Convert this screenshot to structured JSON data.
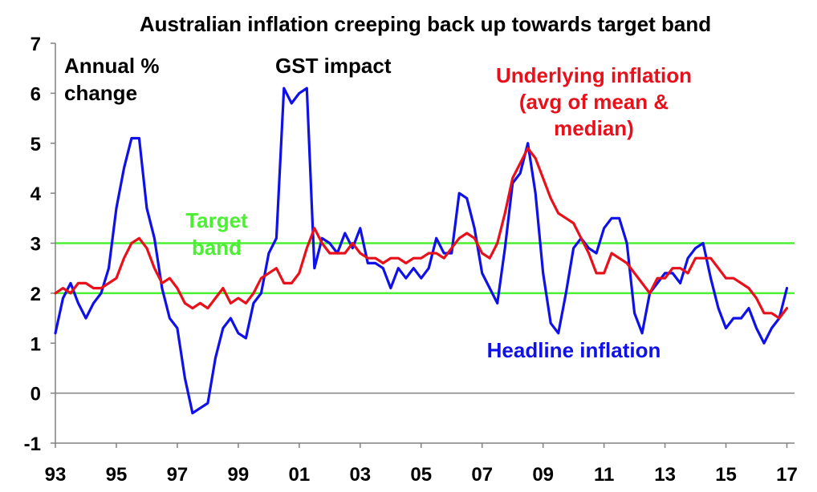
{
  "chart_data": {
    "type": "line",
    "title": "Australian inflation creeping back up towards target band",
    "ylabel_lines": [
      "Annual %",
      "change"
    ],
    "xlabel": "",
    "ylim": [
      -1,
      7
    ],
    "yticks": [
      -1,
      0,
      1,
      2,
      3,
      4,
      5,
      6,
      7
    ],
    "xlim": [
      1993,
      2017.25
    ],
    "xticks": [
      {
        "value": 1993,
        "label": "93"
      },
      {
        "value": 1995,
        "label": "95"
      },
      {
        "value": 1997,
        "label": "97"
      },
      {
        "value": 1999,
        "label": "99"
      },
      {
        "value": 2001,
        "label": "01"
      },
      {
        "value": 2003,
        "label": "03"
      },
      {
        "value": 2005,
        "label": "05"
      },
      {
        "value": 2007,
        "label": "07"
      },
      {
        "value": 2009,
        "label": "09"
      },
      {
        "value": 2011,
        "label": "11"
      },
      {
        "value": 2013,
        "label": "13"
      },
      {
        "value": 2015,
        "label": "15"
      },
      {
        "value": 2017,
        "label": "17"
      }
    ],
    "reference_lines": [
      {
        "y": 0,
        "color": "#808080"
      },
      {
        "y": 2,
        "color": "#4cf032"
      },
      {
        "y": 3,
        "color": "#4cf032"
      }
    ],
    "annotations": {
      "gst": "GST impact",
      "target_lines": [
        "Target",
        "band"
      ],
      "underlying_lines": [
        "Underlying inflation",
        "(avg of mean &",
        "median)"
      ],
      "headline": "Headline inflation"
    },
    "series": [
      {
        "name": "Headline inflation",
        "color": "#1010e8",
        "x": [
          1993.0,
          1993.25,
          1993.5,
          1993.75,
          1994.0,
          1994.25,
          1994.5,
          1994.75,
          1995.0,
          1995.25,
          1995.5,
          1995.75,
          1996.0,
          1996.25,
          1996.5,
          1996.75,
          1997.0,
          1997.25,
          1997.5,
          1997.75,
          1998.0,
          1998.25,
          1998.5,
          1998.75,
          1999.0,
          1999.25,
          1999.5,
          1999.75,
          2000.0,
          2000.25,
          2000.5,
          2000.75,
          2001.0,
          2001.25,
          2001.5,
          2001.75,
          2002.0,
          2002.25,
          2002.5,
          2002.75,
          2003.0,
          2003.25,
          2003.5,
          2003.75,
          2004.0,
          2004.25,
          2004.5,
          2004.75,
          2005.0,
          2005.25,
          2005.5,
          2005.75,
          2006.0,
          2006.25,
          2006.5,
          2006.75,
          2007.0,
          2007.25,
          2007.5,
          2007.75,
          2008.0,
          2008.25,
          2008.5,
          2008.75,
          2009.0,
          2009.25,
          2009.5,
          2009.75,
          2010.0,
          2010.25,
          2010.5,
          2010.75,
          2011.0,
          2011.25,
          2011.5,
          2011.75,
          2012.0,
          2012.25,
          2012.5,
          2012.75,
          2013.0,
          2013.25,
          2013.5,
          2013.75,
          2014.0,
          2014.25,
          2014.5,
          2014.75,
          2015.0,
          2015.25,
          2015.5,
          2015.75,
          2016.0,
          2016.25,
          2016.5,
          2016.75,
          2017.0
        ],
        "values": [
          1.2,
          1.9,
          2.2,
          1.8,
          1.5,
          1.8,
          2.0,
          2.5,
          3.7,
          4.5,
          5.1,
          5.1,
          3.7,
          3.1,
          2.1,
          1.5,
          1.3,
          0.3,
          -0.4,
          -0.3,
          -0.2,
          0.7,
          1.3,
          1.5,
          1.2,
          1.1,
          1.8,
          2.0,
          2.8,
          3.1,
          6.1,
          5.8,
          6.0,
          6.1,
          2.5,
          3.1,
          3.0,
          2.8,
          3.2,
          2.9,
          3.3,
          2.6,
          2.6,
          2.5,
          2.1,
          2.5,
          2.3,
          2.5,
          2.3,
          2.5,
          3.1,
          2.8,
          2.8,
          4.0,
          3.9,
          3.3,
          2.4,
          2.1,
          1.8,
          2.9,
          4.2,
          4.4,
          5.0,
          4.0,
          2.4,
          1.4,
          1.2,
          2.0,
          2.9,
          3.1,
          2.9,
          2.8,
          3.3,
          3.5,
          3.5,
          3.0,
          1.6,
          1.2,
          2.0,
          2.2,
          2.4,
          2.4,
          2.2,
          2.7,
          2.9,
          3.0,
          2.3,
          1.7,
          1.3,
          1.5,
          1.5,
          1.7,
          1.3,
          1.0,
          1.3,
          1.5,
          2.1
        ]
      },
      {
        "name": "Underlying inflation (avg of mean & median)",
        "color": "#e8101a",
        "x": [
          1993.0,
          1993.25,
          1993.5,
          1993.75,
          1994.0,
          1994.25,
          1994.5,
          1994.75,
          1995.0,
          1995.25,
          1995.5,
          1995.75,
          1996.0,
          1996.25,
          1996.5,
          1996.75,
          1997.0,
          1997.25,
          1997.5,
          1997.75,
          1998.0,
          1998.25,
          1998.5,
          1998.75,
          1999.0,
          1999.25,
          1999.5,
          1999.75,
          2000.0,
          2000.25,
          2000.5,
          2000.75,
          2001.0,
          2001.25,
          2001.5,
          2001.75,
          2002.0,
          2002.25,
          2002.5,
          2002.75,
          2003.0,
          2003.25,
          2003.5,
          2003.75,
          2004.0,
          2004.25,
          2004.5,
          2004.75,
          2005.0,
          2005.25,
          2005.5,
          2005.75,
          2006.0,
          2006.25,
          2006.5,
          2006.75,
          2007.0,
          2007.25,
          2007.5,
          2007.75,
          2008.0,
          2008.25,
          2008.5,
          2008.75,
          2009.0,
          2009.25,
          2009.5,
          2009.75,
          2010.0,
          2010.25,
          2010.5,
          2010.75,
          2011.0,
          2011.25,
          2011.5,
          2011.75,
          2012.0,
          2012.25,
          2012.5,
          2012.75,
          2013.0,
          2013.25,
          2013.5,
          2013.75,
          2014.0,
          2014.25,
          2014.5,
          2014.75,
          2015.0,
          2015.25,
          2015.5,
          2015.75,
          2016.0,
          2016.25,
          2016.5,
          2016.75,
          2017.0
        ],
        "values": [
          2.0,
          2.1,
          2.0,
          2.2,
          2.2,
          2.1,
          2.1,
          2.2,
          2.3,
          2.7,
          3.0,
          3.1,
          2.9,
          2.5,
          2.2,
          2.3,
          2.1,
          1.8,
          1.7,
          1.8,
          1.7,
          1.9,
          2.1,
          1.8,
          1.9,
          1.8,
          2.0,
          2.3,
          2.4,
          2.5,
          2.2,
          2.2,
          2.4,
          2.9,
          3.3,
          3.0,
          2.8,
          2.8,
          2.8,
          3.0,
          2.8,
          2.7,
          2.7,
          2.6,
          2.7,
          2.7,
          2.6,
          2.7,
          2.7,
          2.8,
          2.8,
          2.7,
          2.9,
          3.1,
          3.2,
          3.1,
          2.8,
          2.7,
          3.0,
          3.6,
          4.3,
          4.6,
          4.9,
          4.7,
          4.3,
          3.9,
          3.6,
          3.5,
          3.4,
          3.1,
          2.8,
          2.4,
          2.4,
          2.8,
          2.7,
          2.6,
          2.4,
          2.2,
          2.0,
          2.3,
          2.3,
          2.5,
          2.5,
          2.4,
          2.7,
          2.7,
          2.7,
          2.5,
          2.3,
          2.3,
          2.2,
          2.1,
          1.9,
          1.6,
          1.6,
          1.5,
          1.7
        ]
      }
    ]
  }
}
